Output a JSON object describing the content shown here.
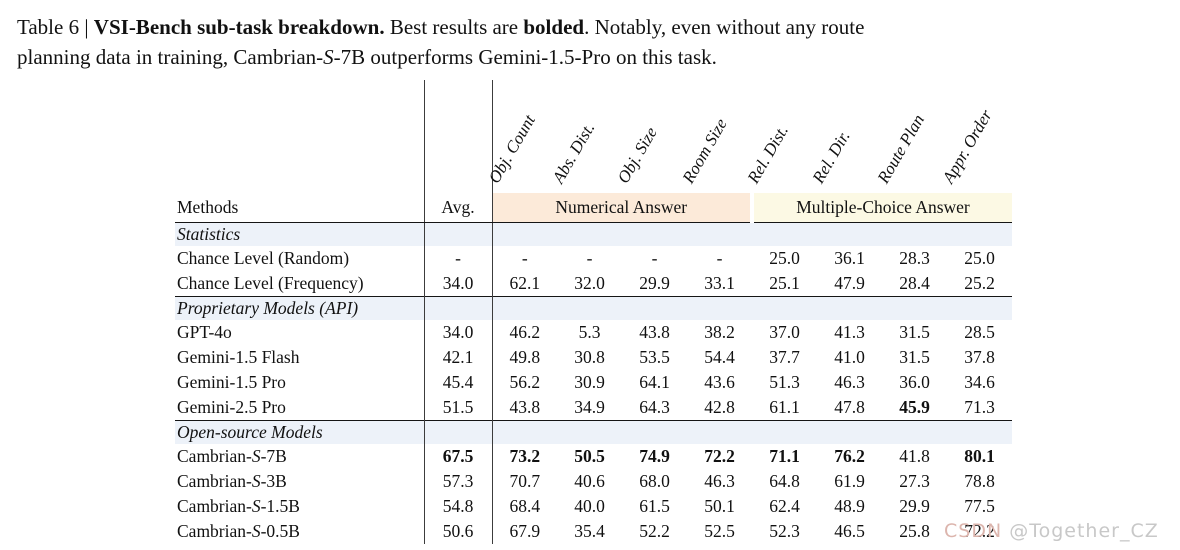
{
  "caption": {
    "parts": [
      {
        "t": "Table 6 | "
      },
      {
        "t": "VSI-Bench sub-task breakdown.",
        "b": true
      },
      {
        "t": " Best results are "
      },
      {
        "t": "bolded",
        "b": true
      },
      {
        "t": ". Notably, even without any route"
      },
      {
        "br": true
      },
      {
        "t": "planning data in training, Cambrian-"
      },
      {
        "t": "S",
        "i": true
      },
      {
        "t": "-7B outperforms Gemini-1.5-Pro on this task."
      }
    ]
  },
  "table": {
    "header": {
      "methods": "Methods",
      "avg": "Avg.",
      "group_numerical": "Numerical Answer",
      "group_multiple_choice": "Multiple-Choice Answer"
    },
    "col_headers": [
      "Obj. Count",
      "Abs. Dist.",
      "Obj. Size",
      "Room Size",
      "Rel. Dist.",
      "Rel. Dir.",
      "Route Plan",
      "Appr. Order"
    ],
    "sections": [
      {
        "label": "Statistics",
        "rows": [
          {
            "method": [
              {
                "t": "Chance Level (Random)"
              }
            ],
            "values": [
              "-",
              "-",
              "-",
              "-",
              "-",
              "25.0",
              "36.1",
              "28.3",
              "25.0"
            ],
            "bold": []
          },
          {
            "method": [
              {
                "t": "Chance Level (Frequency)"
              }
            ],
            "values": [
              "34.0",
              "62.1",
              "32.0",
              "29.9",
              "33.1",
              "25.1",
              "47.9",
              "28.4",
              "25.2"
            ],
            "bold": []
          }
        ]
      },
      {
        "label": "Proprietary Models (API)",
        "rows": [
          {
            "method": [
              {
                "t": "GPT-4o"
              }
            ],
            "values": [
              "34.0",
              "46.2",
              "5.3",
              "43.8",
              "38.2",
              "37.0",
              "41.3",
              "31.5",
              "28.5"
            ],
            "bold": []
          },
          {
            "method": [
              {
                "t": "Gemini-1.5 Flash"
              }
            ],
            "values": [
              "42.1",
              "49.8",
              "30.8",
              "53.5",
              "54.4",
              "37.7",
              "41.0",
              "31.5",
              "37.8"
            ],
            "bold": []
          },
          {
            "method": [
              {
                "t": "Gemini-1.5 Pro"
              }
            ],
            "values": [
              "45.4",
              "56.2",
              "30.9",
              "64.1",
              "43.6",
              "51.3",
              "46.3",
              "36.0",
              "34.6"
            ],
            "bold": []
          },
          {
            "method": [
              {
                "t": "Gemini-2.5 Pro"
              }
            ],
            "values": [
              "51.5",
              "43.8",
              "34.9",
              "64.3",
              "42.8",
              "61.1",
              "47.8",
              "45.9",
              "71.3"
            ],
            "bold": [
              7
            ]
          }
        ]
      },
      {
        "label": "Open-source Models",
        "rows": [
          {
            "method": [
              {
                "t": "Cambrian-"
              },
              {
                "t": "S",
                "i": true
              },
              {
                "t": "-7B"
              }
            ],
            "values": [
              "67.5",
              "73.2",
              "50.5",
              "74.9",
              "72.2",
              "71.1",
              "76.2",
              "41.8",
              "80.1"
            ],
            "bold": [
              0,
              1,
              2,
              3,
              4,
              5,
              6,
              8
            ]
          },
          {
            "method": [
              {
                "t": "Cambrian-"
              },
              {
                "t": "S",
                "i": true
              },
              {
                "t": "-3B"
              }
            ],
            "values": [
              "57.3",
              "70.7",
              "40.6",
              "68.0",
              "46.3",
              "64.8",
              "61.9",
              "27.3",
              "78.8"
            ],
            "bold": []
          },
          {
            "method": [
              {
                "t": "Cambrian-"
              },
              {
                "t": "S",
                "i": true
              },
              {
                "t": "-1.5B"
              }
            ],
            "values": [
              "54.8",
              "68.4",
              "40.0",
              "61.5",
              "50.1",
              "62.4",
              "48.9",
              "29.9",
              "77.5"
            ],
            "bold": []
          },
          {
            "method": [
              {
                "t": "Cambrian-"
              },
              {
                "t": "S",
                "i": true
              },
              {
                "t": "-0.5B"
              }
            ],
            "values": [
              "50.6",
              "67.9",
              "35.4",
              "52.2",
              "52.5",
              "52.3",
              "46.5",
              "25.8",
              "72.2"
            ],
            "bold": []
          }
        ]
      }
    ]
  },
  "watermark": {
    "brand": "CSDN",
    "handle": " @Together_CZ"
  },
  "colors": {
    "numerical_bg": "#fcead9",
    "multiple_choice_bg": "#fcf9e4",
    "section_bg": "#edf2f9",
    "rule": "#151515",
    "line": "#3c3c3c",
    "text": "#111111",
    "watermark_brand": "#dcb5ad",
    "watermark_handle": "#c8c8c8"
  }
}
